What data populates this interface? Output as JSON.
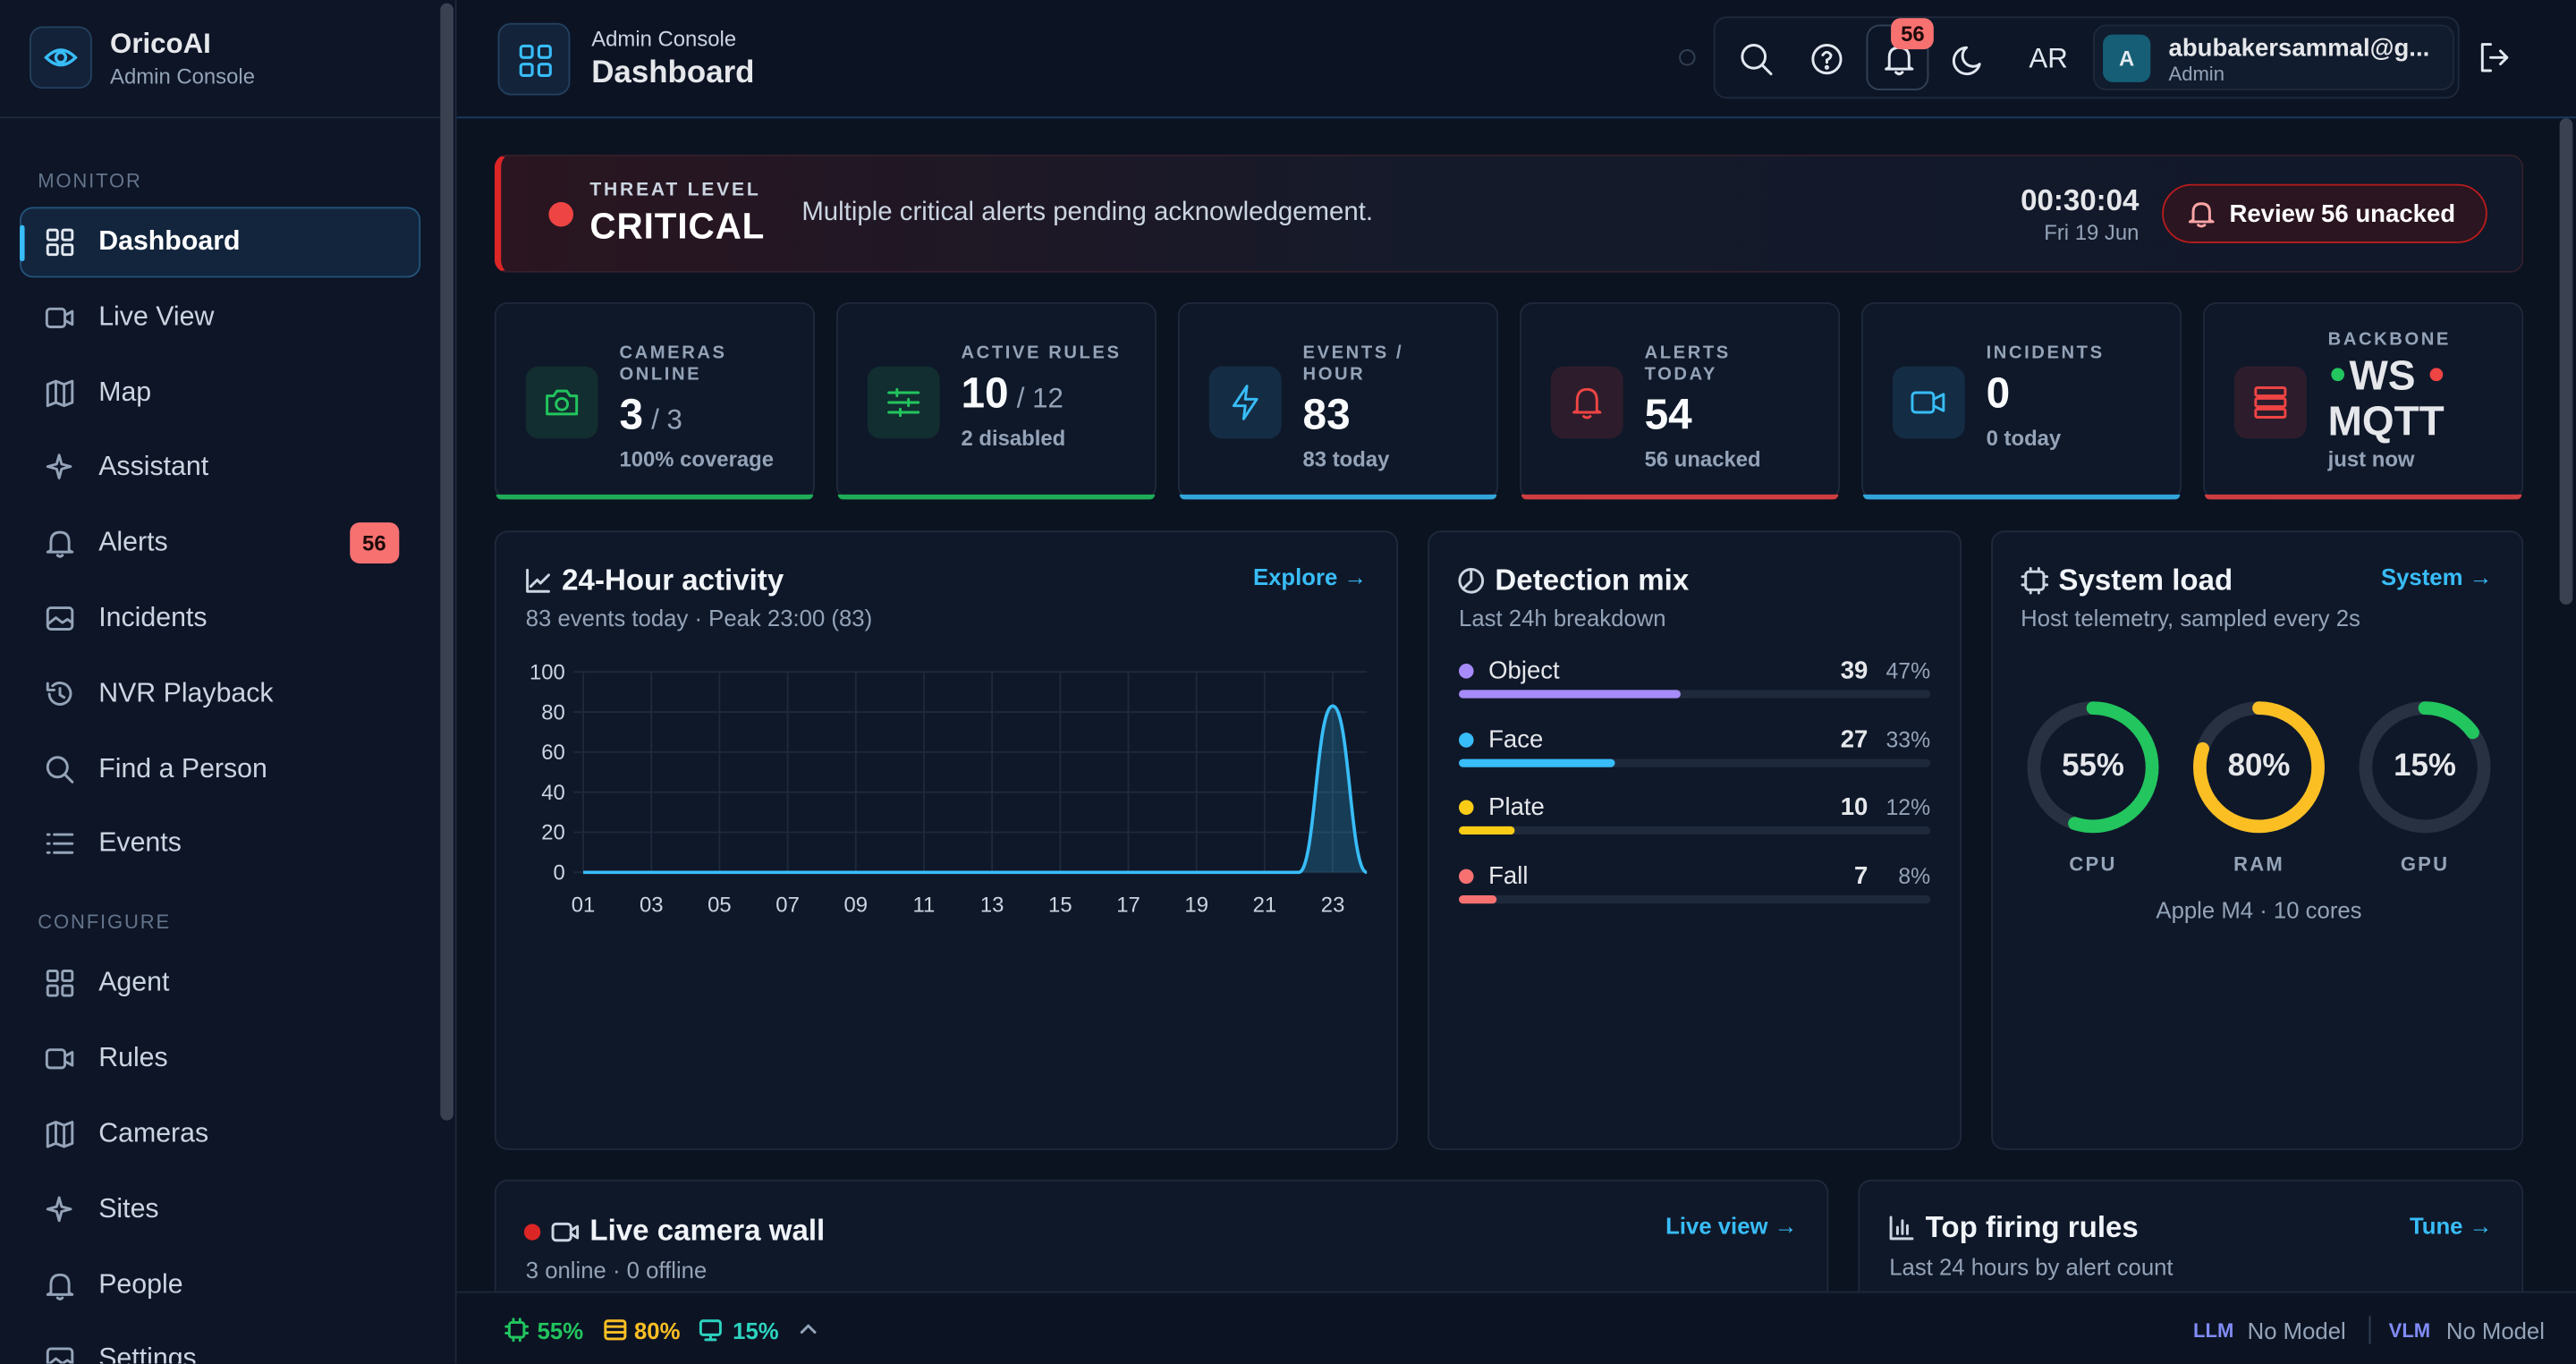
{
  "sidebar": {
    "brand": "OricoAI",
    "brand_sub": "Admin Console",
    "sections": [
      {
        "title": "MONITOR",
        "items": [
          {
            "label": "Dashboard"
          },
          {
            "label": "Live View"
          },
          {
            "label": "Map"
          },
          {
            "label": "Assistant"
          },
          {
            "label": "Alerts",
            "badge": "56"
          },
          {
            "label": "Incidents"
          },
          {
            "label": "NVR Playback"
          },
          {
            "label": "Find a Person"
          },
          {
            "label": "Events"
          }
        ]
      },
      {
        "title": "CONFIGURE",
        "items": [
          {
            "label": "Agent"
          },
          {
            "label": "Rules"
          },
          {
            "label": "Cameras"
          },
          {
            "label": "Sites"
          },
          {
            "label": "People"
          },
          {
            "label": "Settings"
          }
        ]
      }
    ]
  },
  "header": {
    "eyebrow": "Admin Console",
    "title": "Dashboard",
    "notifications": "56",
    "language": "AR",
    "user_initial": "A",
    "user_email": "abubakersammal@g...",
    "user_role": "Admin"
  },
  "threat": {
    "label": "THREAT LEVEL",
    "level": "CRITICAL",
    "message": "Multiple critical alerts pending acknowledgement.",
    "time": "00:30:04",
    "date": "Fri 19 Jun",
    "button": "Review 56 unacked"
  },
  "stats": [
    {
      "label": "CAMERAS ONLINE",
      "value": "3",
      "total": "/ 3",
      "sub": "100% coverage",
      "color": "#22c55e"
    },
    {
      "label": "ACTIVE RULES",
      "value": "10",
      "total": "/ 12",
      "sub": "2 disabled",
      "color": "#22c55e"
    },
    {
      "label": "EVENTS / HOUR",
      "value": "83",
      "sub": "83 today",
      "color": "#38bdf8"
    },
    {
      "label": "ALERTS TODAY",
      "value": "54",
      "sub": "56 unacked",
      "color": "#ef4444"
    },
    {
      "label": "INCIDENTS",
      "value": "0",
      "sub": "0 today",
      "color": "#38bdf8"
    },
    {
      "label": "BACKBONE",
      "channels": [
        {
          "name": "WS",
          "color": "#22c55e"
        },
        {
          "name": "MQTT",
          "color": "#ef4444"
        }
      ],
      "sub": "just now",
      "color": "#ef4444"
    }
  ],
  "activity": {
    "title": "24-Hour activity",
    "link": "Explore →",
    "subtitle": "83 events today · Peak 23:00 (83)"
  },
  "chart_data": {
    "type": "line",
    "x": [
      1,
      2,
      3,
      4,
      5,
      6,
      7,
      8,
      9,
      10,
      11,
      12,
      13,
      14,
      15,
      16,
      17,
      18,
      19,
      20,
      21,
      22,
      23,
      24
    ],
    "values": [
      0,
      0,
      0,
      0,
      0,
      0,
      0,
      0,
      0,
      0,
      0,
      0,
      0,
      0,
      0,
      0,
      0,
      0,
      0,
      0,
      0,
      0,
      83,
      0
    ],
    "color": "#38bdf8",
    "xlim": [
      1,
      24
    ],
    "ylim": [
      0,
      100
    ],
    "yticks": [
      0,
      20,
      40,
      60,
      80,
      100
    ],
    "xticks": [
      {
        "value": 1,
        "label": "01"
      },
      {
        "value": 3,
        "label": "03"
      },
      {
        "value": 5,
        "label": "05"
      },
      {
        "value": 7,
        "label": "07"
      },
      {
        "value": 9,
        "label": "09"
      },
      {
        "value": 11,
        "label": "11"
      },
      {
        "value": 13,
        "label": "13"
      },
      {
        "value": 15,
        "label": "15"
      },
      {
        "value": 17,
        "label": "17"
      },
      {
        "value": 19,
        "label": "19"
      },
      {
        "value": 21,
        "label": "21"
      },
      {
        "value": 23,
        "label": "23"
      }
    ],
    "grid": true
  },
  "detection": {
    "title": "Detection mix",
    "subtitle": "Last 24h breakdown",
    "items": [
      {
        "name": "Object",
        "count": 39,
        "pct": 47,
        "pct_label": "47%",
        "color": "#a78bfa"
      },
      {
        "name": "Face",
        "count": 27,
        "pct": 33,
        "pct_label": "33%",
        "color": "#38bdf8"
      },
      {
        "name": "Plate",
        "count": 10,
        "pct": 12,
        "pct_label": "12%",
        "color": "#facc15"
      },
      {
        "name": "Fall",
        "count": 7,
        "pct": 8,
        "pct_label": "8%",
        "color": "#f87171"
      }
    ]
  },
  "system": {
    "title": "System load",
    "link": "System →",
    "subtitle": "Host telemetry, sampled every 2s",
    "gauges": [
      {
        "name": "CPU",
        "value": 55,
        "label": "55%",
        "color": "#22c55e"
      },
      {
        "name": "RAM",
        "value": 80,
        "label": "80%",
        "color": "#fbbf24"
      },
      {
        "name": "GPU",
        "value": 15,
        "label": "15%",
        "color": "#22c55e"
      }
    ],
    "footer": "Apple M4 · 10 cores"
  },
  "camera_wall": {
    "title": "Live camera wall",
    "link": "Live view →",
    "subtitle": "3 online · 0 offline"
  },
  "top_rules": {
    "title": "Top firing rules",
    "link": "Tune →",
    "subtitle": "Last 24 hours by alert count"
  },
  "status_bar": {
    "cpu": "55%",
    "ram": "80%",
    "gpu": "15%",
    "llm_label": "LLM",
    "llm_value": "No Model",
    "vlm_label": "VLM",
    "vlm_value": "No Model"
  }
}
